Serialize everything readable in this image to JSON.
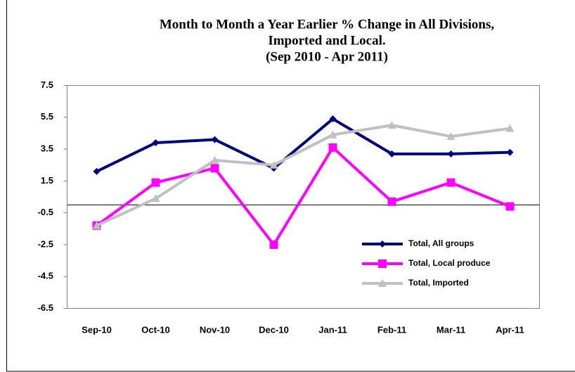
{
  "chart_data": {
    "type": "line",
    "title": [
      "Month to Month a Year Earlier % Change in All Divisions,",
      "Imported and Local.",
      "(Sep 2010 - Apr 2011)"
    ],
    "categories": [
      "Sep-10",
      "Oct-10",
      "Nov-10",
      "Dec-10",
      "Jan-11",
      "Feb-11",
      "Mar-11",
      "Apr-11"
    ],
    "series": [
      {
        "name": "Total, All groups",
        "color": "#000080",
        "marker": "diamond",
        "values": [
          2.1,
          3.9,
          4.1,
          2.3,
          5.4,
          3.2,
          3.2,
          3.3
        ]
      },
      {
        "name": "Total, Local produce",
        "color": "#ff00ff",
        "marker": "square",
        "values": [
          -1.3,
          1.4,
          2.3,
          -2.5,
          3.6,
          0.2,
          1.4,
          -0.1
        ]
      },
      {
        "name": "Total, Imported",
        "color": "#c0c0c0",
        "marker": "triangle",
        "values": [
          -1.3,
          0.4,
          2.8,
          2.5,
          4.4,
          5.0,
          4.3,
          4.8
        ]
      }
    ],
    "ylim": [
      -6.5,
      7.5
    ],
    "yticks": [
      -6.5,
      -4.5,
      -2.5,
      -0.5,
      1.5,
      3.5,
      5.5,
      7.5
    ],
    "grid": false,
    "legend": "lower right"
  }
}
